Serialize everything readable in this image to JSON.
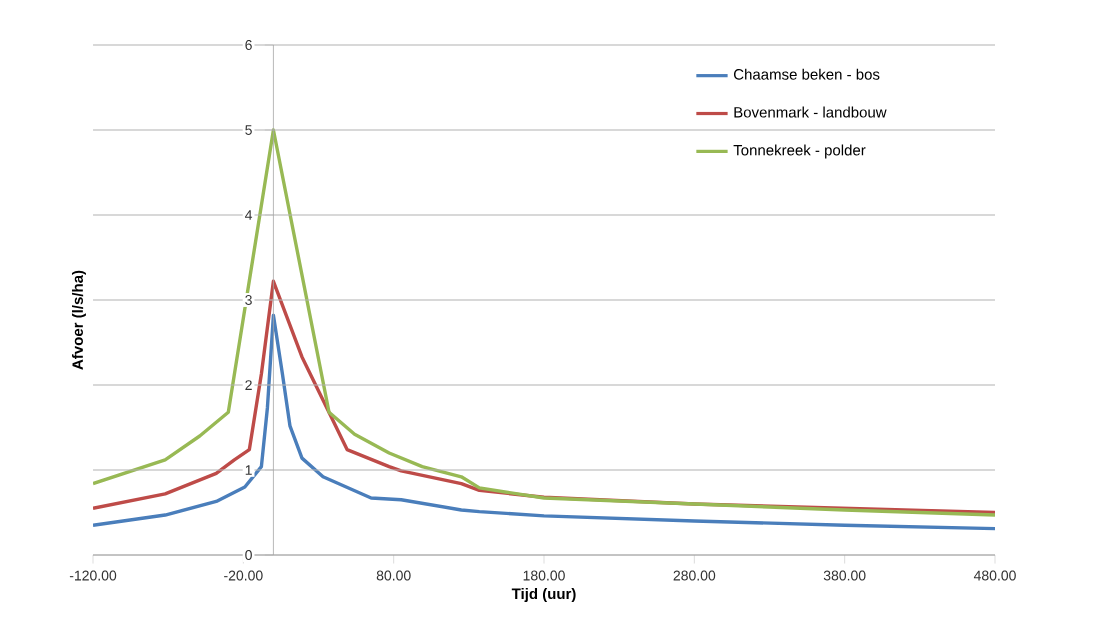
{
  "chart_data": {
    "type": "line",
    "xlabel": "Tijd (uur)",
    "ylabel": "Afvoer (l/s/ha)",
    "xlim": [
      -120,
      480
    ],
    "ylim": [
      0,
      6
    ],
    "xticks": [
      {
        "value": -120,
        "label": "-120.00"
      },
      {
        "value": -20,
        "label": "-20.00"
      },
      {
        "value": 80,
        "label": "80.00"
      },
      {
        "value": 180,
        "label": "180.00"
      },
      {
        "value": 280,
        "label": "280.00"
      },
      {
        "value": 380,
        "label": "380.00"
      },
      {
        "value": 480,
        "label": "480.00"
      }
    ],
    "yticks": [
      0,
      1,
      2,
      3,
      4,
      5,
      6
    ],
    "grid": "y",
    "legend": "top right",
    "series": [
      {
        "name": "Chaamse beken - bos",
        "color": "#4a7ebb",
        "x": [
          -120,
          -72,
          -38,
          -19,
          -8,
          -4,
          0,
          6,
          11,
          19,
          33,
          65,
          85,
          125,
          137,
          180,
          280,
          380,
          480
        ],
        "values": [
          0.35,
          0.47,
          0.63,
          0.8,
          1.04,
          1.73,
          2.82,
          2.13,
          1.52,
          1.14,
          0.92,
          0.67,
          0.65,
          0.53,
          0.51,
          0.46,
          0.4,
          0.35,
          0.31
        ]
      },
      {
        "name": "Bovenmark - landbouw",
        "color": "#be4b48",
        "x": [
          -120,
          -72,
          -38,
          -26,
          -16,
          -8,
          0,
          19,
          38,
          49,
          77,
          85,
          125,
          137,
          180,
          280,
          380,
          480
        ],
        "values": [
          0.55,
          0.72,
          0.96,
          1.12,
          1.24,
          2.13,
          3.22,
          2.33,
          1.64,
          1.24,
          1.04,
          0.99,
          0.84,
          0.76,
          0.68,
          0.6,
          0.55,
          0.5
        ]
      },
      {
        "name": "Tonnekreek - polder",
        "color": "#98b954",
        "x": [
          -120,
          -72,
          -49,
          -30,
          0,
          37,
          54,
          77,
          99,
          125,
          137,
          180,
          280,
          380,
          480
        ],
        "values": [
          0.84,
          1.12,
          1.4,
          1.68,
          5.0,
          1.68,
          1.42,
          1.2,
          1.04,
          0.92,
          0.79,
          0.67,
          0.6,
          0.53,
          0.47
        ]
      }
    ]
  }
}
